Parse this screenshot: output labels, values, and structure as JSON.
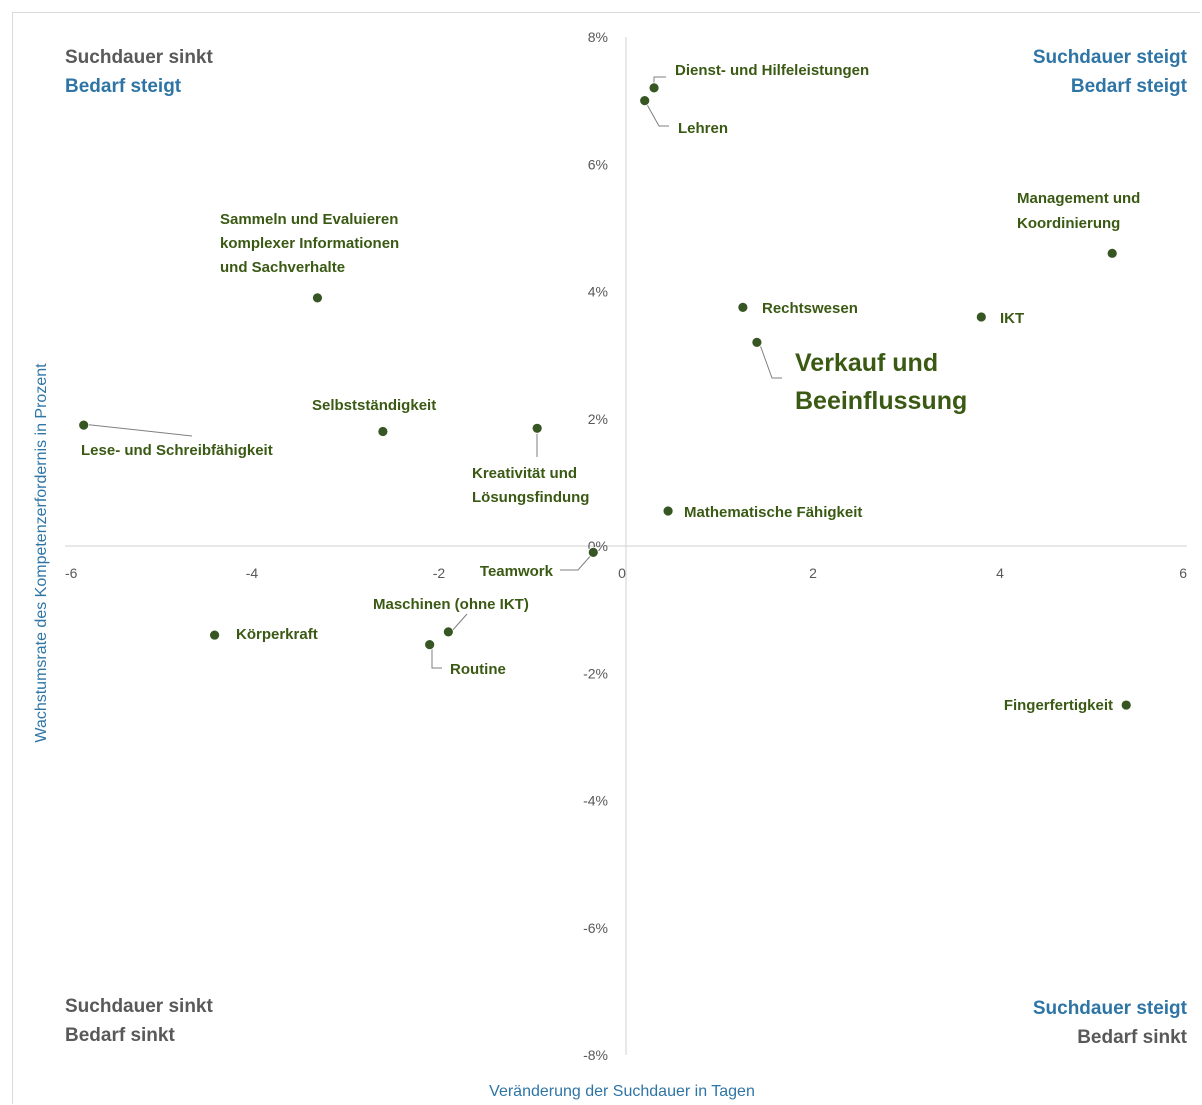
{
  "chart_data": {
    "type": "scatter",
    "title": "",
    "xlabel": "Veränderung der Suchdauer in Tagen",
    "ylabel": "Wachstumsrate des Kompetenzerfordernis  in Prozent",
    "xlim": [
      -6,
      6
    ],
    "ylim": [
      -8,
      8
    ],
    "x_ticks": [
      -6,
      -4,
      -2,
      0,
      2,
      4,
      6
    ],
    "y_ticks": [
      {
        "value": 8,
        "label": "8%"
      },
      {
        "value": 6,
        "label": "6%"
      },
      {
        "value": 4,
        "label": "4%"
      },
      {
        "value": 2,
        "label": "2%"
      },
      {
        "value": 0,
        "label": "0%"
      },
      {
        "value": -2,
        "label": "-2%"
      },
      {
        "value": -4,
        "label": "-4%"
      },
      {
        "value": -6,
        "label": "-6%"
      },
      {
        "value": -8,
        "label": "-8%"
      }
    ],
    "grid": false,
    "marker_color": "#375623",
    "points": [
      {
        "label": "Dienst- und Hilfeleistungen",
        "x": 0.3,
        "y": 7.2
      },
      {
        "label": "Lehren",
        "x": 0.2,
        "y": 7.0
      },
      {
        "label": "Management und|Koordinierung",
        "x": 5.2,
        "y": 4.6
      },
      {
        "label": "Sammeln und Evaluieren|komplexer Informationen|und Sachverhalte",
        "x": -3.3,
        "y": 3.9
      },
      {
        "label": "Rechtswesen",
        "x": 1.25,
        "y": 3.75
      },
      {
        "label": "IKT",
        "x": 3.8,
        "y": 3.6
      },
      {
        "label": "Verkauf und|Beeinflussung",
        "x": 1.4,
        "y": 3.2,
        "emphasis": true
      },
      {
        "label": "Lese- und Schreibfähigkeit",
        "x": -5.8,
        "y": 1.9
      },
      {
        "label": "Selbstständigkeit",
        "x": -2.6,
        "y": 1.8
      },
      {
        "label": "Kreativität und|Lösungsfindung",
        "x": -0.95,
        "y": 1.85
      },
      {
        "label": "Mathematische Fähigkeit",
        "x": 0.45,
        "y": 0.55
      },
      {
        "label": "Teamwork",
        "x": -0.35,
        "y": -0.1
      },
      {
        "label": "Maschinen  (ohne IKT)",
        "x": -1.9,
        "y": -1.35
      },
      {
        "label": "Körperkraft",
        "x": -4.4,
        "y": -1.4
      },
      {
        "label": "Routine",
        "x": -2.1,
        "y": -1.55
      },
      {
        "label": "Fingerfertigkeit",
        "x": 5.35,
        "y": -2.5
      }
    ],
    "quadrants": {
      "top_left": [
        "Suchdauer sinkt",
        "Bedarf steigt"
      ],
      "top_right": [
        "Suchdauer steigt",
        "Bedarf steigt"
      ],
      "bottom_left": [
        "Suchdauer sinkt",
        "Bedarf sinkt"
      ],
      "bottom_right": [
        "Suchdauer steigt",
        "Bedarf sinkt"
      ]
    }
  },
  "colors": {
    "axis_line": "#d9d9d9",
    "tick_text": "#595959",
    "label_text": "#3a5a14",
    "quadrant_grey": "#595959",
    "quadrant_blue": "#2e75a6"
  }
}
